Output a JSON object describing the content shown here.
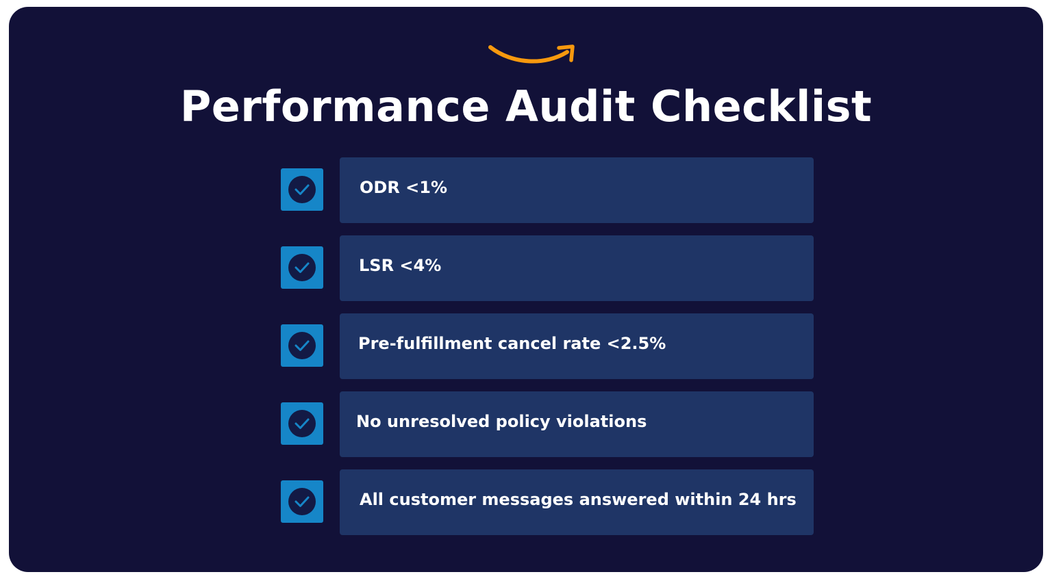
{
  "colors": {
    "background": "#121138",
    "item_bar": "#1f3566",
    "checkbox": "#1686c8",
    "check_circle": "#131a45",
    "check_mark": "#1686c8",
    "logo_smile": "#f7990e",
    "text": "#ffffff"
  },
  "header": {
    "logo_icon": "amazon-smile-icon",
    "title": "Performance Audit Checklist"
  },
  "checklist": {
    "icon": "check-circle-icon",
    "items": [
      {
        "label": "ODR <1%",
        "checked": true
      },
      {
        "label": "LSR <4%",
        "checked": true
      },
      {
        "label": "Pre-fulfillment cancel rate <2.5%",
        "checked": true
      },
      {
        "label": "No unresolved policy violations",
        "checked": true
      },
      {
        "label": "All customer messages answered within 24 hrs",
        "checked": true
      }
    ]
  }
}
